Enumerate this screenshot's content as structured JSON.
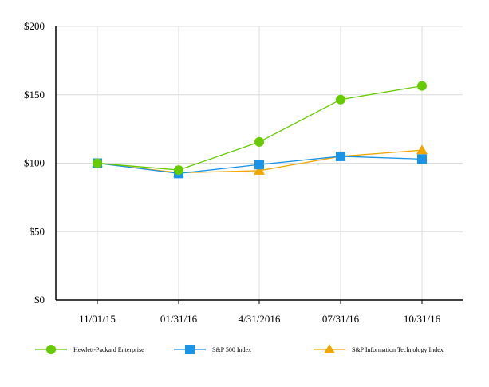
{
  "chart_data": {
    "type": "line",
    "title": "",
    "xlabel": "",
    "ylabel": "",
    "categories": [
      "11/01/15",
      "01/31/16",
      "4/31/2016",
      "07/31/16",
      "10/31/16"
    ],
    "ylim": [
      0,
      200
    ],
    "yticks": [
      0,
      50,
      100,
      150,
      200
    ],
    "ytick_labels": [
      "$0",
      "$50",
      "$100",
      "$150",
      "$200"
    ],
    "grid": "vertical",
    "legend_position": "bottom",
    "series": [
      {
        "name": "Hewlett-Packard Enterprise",
        "values": [
          100,
          95,
          115.5,
          146.5,
          156.5
        ],
        "color": "#66cc00",
        "marker": "circle"
      },
      {
        "name": "S&P 500 Index",
        "values": [
          100,
          92.5,
          99,
          105,
          103
        ],
        "color": "#1a94e6",
        "marker": "square"
      },
      {
        "name": "S&P Information Technology Index",
        "values": [
          100,
          93,
          94.5,
          105,
          109.5
        ],
        "color": "#f0a800",
        "marker": "triangle"
      }
    ]
  }
}
